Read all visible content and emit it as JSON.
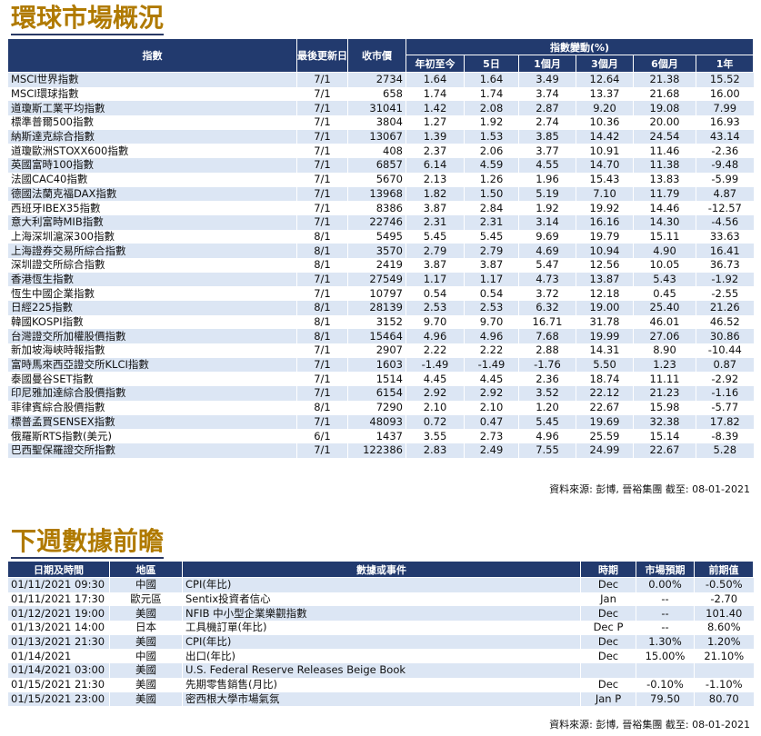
{
  "market": {
    "title": "環球市場概況",
    "headers": {
      "index": "指數",
      "last_update": "最後更新日",
      "close": "收市價",
      "change_group": "指數變動(%)",
      "ytd": "年初至今",
      "d5": "5日",
      "m1": "1個月",
      "m3": "3個月",
      "m6": "6個月",
      "y1": "1年"
    },
    "rows": [
      [
        "MSCI世界指數",
        "7/1",
        "2734",
        "1.64",
        "1.64",
        "3.49",
        "12.64",
        "21.38",
        "15.52"
      ],
      [
        "MSCI環球指數",
        "7/1",
        "658",
        "1.74",
        "1.74",
        "3.74",
        "13.37",
        "21.68",
        "16.00"
      ],
      [
        "道瓊斯工業平均指數",
        "7/1",
        "31041",
        "1.42",
        "2.08",
        "2.87",
        "9.20",
        "19.08",
        "7.99"
      ],
      [
        "標準普爾500指數",
        "7/1",
        "3804",
        "1.27",
        "1.92",
        "2.74",
        "10.36",
        "20.00",
        "16.93"
      ],
      [
        "納斯達克綜合指數",
        "7/1",
        "13067",
        "1.39",
        "1.53",
        "3.85",
        "14.42",
        "24.54",
        "43.14"
      ],
      [
        "道瓊歐洲STOXX600指數",
        "7/1",
        "408",
        "2.37",
        "2.06",
        "3.77",
        "10.91",
        "11.46",
        "-2.36"
      ],
      [
        "英國富時100指數",
        "7/1",
        "6857",
        "6.14",
        "4.59",
        "4.55",
        "14.70",
        "11.38",
        "-9.48"
      ],
      [
        "法國CAC40指數",
        "7/1",
        "5670",
        "2.13",
        "1.26",
        "1.96",
        "15.43",
        "13.83",
        "-5.99"
      ],
      [
        "德國法蘭克福DAX指數",
        "7/1",
        "13968",
        "1.82",
        "1.50",
        "5.19",
        "7.10",
        "11.79",
        "4.87"
      ],
      [
        "西班牙IBEX35指數",
        "7/1",
        "8386",
        "3.87",
        "2.84",
        "1.92",
        "19.92",
        "14.46",
        "-12.57"
      ],
      [
        "意大利富時MIB指數",
        "7/1",
        "22746",
        "2.31",
        "2.31",
        "3.14",
        "16.16",
        "14.30",
        "-4.56"
      ],
      [
        "上海深圳滬深300指數",
        "8/1",
        "5495",
        "5.45",
        "5.45",
        "9.69",
        "19.79",
        "15.11",
        "33.63"
      ],
      [
        "上海證券交易所綜合指數",
        "8/1",
        "3570",
        "2.79",
        "2.79",
        "4.69",
        "10.94",
        "4.90",
        "16.41"
      ],
      [
        "深圳證交所綜合指數",
        "8/1",
        "2419",
        "3.87",
        "3.87",
        "5.47",
        "12.56",
        "10.05",
        "36.73"
      ],
      [
        "香港恆生指數",
        "7/1",
        "27549",
        "1.17",
        "1.17",
        "4.73",
        "13.87",
        "5.43",
        "-1.92"
      ],
      [
        "恆生中國企業指數",
        "7/1",
        "10797",
        "0.54",
        "0.54",
        "3.72",
        "12.18",
        "0.45",
        "-2.55"
      ],
      [
        "日經225指數",
        "8/1",
        "28139",
        "2.53",
        "2.53",
        "6.32",
        "19.00",
        "25.40",
        "21.26"
      ],
      [
        "韓國KOSPI指數",
        "8/1",
        "3152",
        "9.70",
        "9.70",
        "16.71",
        "31.78",
        "46.01",
        "46.52"
      ],
      [
        "台灣證交所加權股價指數",
        "8/1",
        "15464",
        "4.96",
        "4.96",
        "7.68",
        "19.99",
        "27.06",
        "30.86"
      ],
      [
        "新加坡海峽時報指數",
        "7/1",
        "2907",
        "2.22",
        "2.22",
        "2.88",
        "14.31",
        "8.90",
        "-10.44"
      ],
      [
        "富時馬來西亞證交所KLCI指數",
        "7/1",
        "1603",
        "-1.49",
        "-1.49",
        "-1.76",
        "5.50",
        "1.23",
        "0.87"
      ],
      [
        "泰國曼谷SET指數",
        "7/1",
        "1514",
        "4.45",
        "4.45",
        "2.36",
        "18.74",
        "11.11",
        "-2.92"
      ],
      [
        "印尼雅加達綜合股價指數",
        "7/1",
        "6154",
        "2.92",
        "2.92",
        "3.52",
        "22.12",
        "21.23",
        "-1.16"
      ],
      [
        "菲律賓綜合股價指數",
        "8/1",
        "7290",
        "2.10",
        "2.10",
        "1.20",
        "22.67",
        "15.98",
        "-5.77"
      ],
      [
        "標普孟買SENSEX指數",
        "7/1",
        "48093",
        "0.72",
        "0.47",
        "5.45",
        "19.69",
        "32.38",
        "17.82"
      ],
      [
        "俄羅斯RTS指數(美元)",
        "6/1",
        "1437",
        "3.55",
        "2.73",
        "4.96",
        "25.59",
        "15.14",
        "-8.39"
      ],
      [
        "巴西聖保羅證交所指數",
        "7/1",
        "122386",
        "2.83",
        "2.49",
        "7.55",
        "24.99",
        "22.67",
        "5.28"
      ]
    ],
    "source": "資料來源: 彭博, 晉裕集團 截至: 08-01-2021"
  },
  "events": {
    "title": "下週數據前瞻",
    "headers": {
      "datetime": "日期及時間",
      "region": "地區",
      "event": "數據或事件",
      "period": "時期",
      "forecast": "市場預期",
      "previous": "前期值"
    },
    "rows": [
      [
        "01/11/2021 09:30",
        "中國",
        "CPI(年比)",
        "Dec",
        "0.00%",
        "-0.50%"
      ],
      [
        "01/11/2021 17:30",
        "歐元區",
        "Sentix投資者信心",
        "Jan",
        "--",
        "-2.70"
      ],
      [
        "01/12/2021 19:00",
        "美國",
        "NFIB 中小型企業樂觀指數",
        "Dec",
        "--",
        "101.40"
      ],
      [
        "01/13/2021 14:00",
        "日本",
        "工具機訂單(年比)",
        "Dec P",
        "--",
        "8.60%"
      ],
      [
        "01/13/2021 21:30",
        "美國",
        "CPI(年比)",
        "Dec",
        "1.30%",
        "1.20%"
      ],
      [
        "01/14/2021",
        "中國",
        "出口(年比)",
        "Dec",
        "15.00%",
        "21.10%"
      ],
      [
        "01/14/2021 03:00",
        "美國",
        "U.S. Federal Reserve Releases Beige Book",
        "",
        "",
        ""
      ],
      [
        "01/15/2021 21:30",
        "美國",
        "先期零售銷售(月比)",
        "Dec",
        "-0.10%",
        "-1.10%"
      ],
      [
        "01/15/2021 23:00",
        "美國",
        "密西根大學市場氣氛",
        "Jan P",
        "79.50",
        "80.70"
      ]
    ],
    "source": "資料來源: 彭博, 晉裕集團 截至: 08-01-2021"
  }
}
